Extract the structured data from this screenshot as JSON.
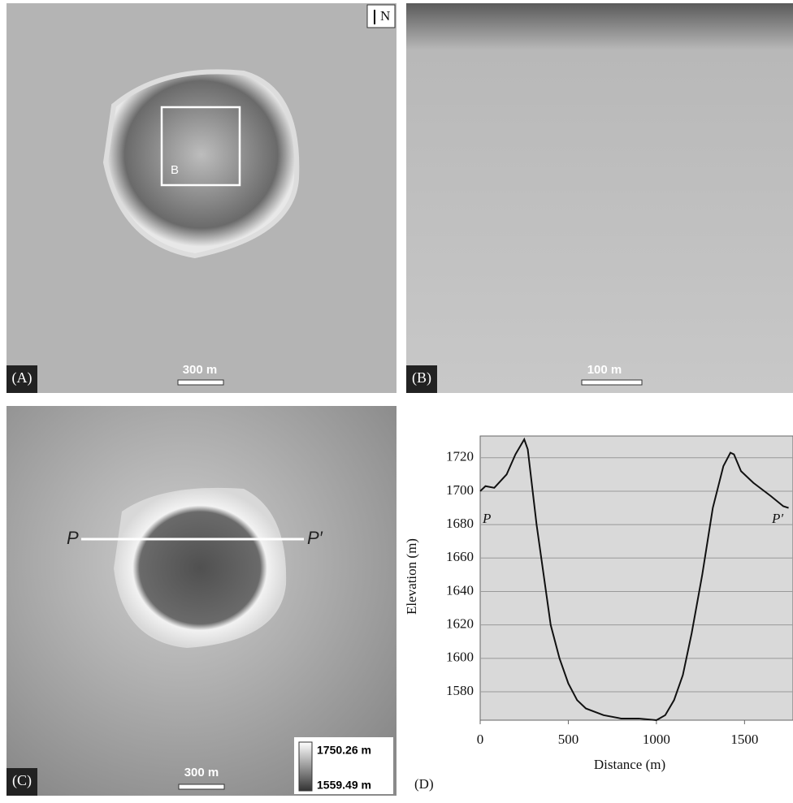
{
  "panels": {
    "a": {
      "label": "(A)",
      "scale": "300 m",
      "north": "N",
      "inset": "B"
    },
    "b": {
      "label": "(B)",
      "scale": "100 m"
    },
    "c": {
      "label": "(C)",
      "scale": "300 m",
      "profile_start": "P",
      "profile_end": "P′",
      "legend_high": "1750.26 m",
      "legend_low": "1559.49 m"
    },
    "d": {
      "label": "(D)"
    }
  },
  "chart_data": {
    "type": "line",
    "xlabel": "Distance (m)",
    "ylabel": "Elevation (m)",
    "x": [
      0,
      30,
      80,
      150,
      200,
      250,
      270,
      320,
      400,
      450,
      500,
      550,
      600,
      700,
      800,
      900,
      1000,
      1050,
      1100,
      1150,
      1200,
      1260,
      1320,
      1380,
      1420,
      1440,
      1480,
      1550,
      1650,
      1720,
      1750
    ],
    "values": [
      1700,
      1703,
      1702,
      1710,
      1722,
      1731,
      1725,
      1680,
      1620,
      1600,
      1585,
      1575,
      1570,
      1566,
      1564,
      1564,
      1563,
      1566,
      1575,
      1590,
      1615,
      1650,
      1690,
      1715,
      1723,
      1722,
      1712,
      1705,
      1697,
      1691,
      1690
    ],
    "color": "#111111",
    "xlim": [
      0,
      1775
    ],
    "ylim": [
      1563,
      1733
    ],
    "xticks": [
      0,
      500,
      1000,
      1500
    ],
    "yticks": [
      1580,
      1600,
      1620,
      1640,
      1660,
      1680,
      1700,
      1720
    ],
    "grid": true,
    "annotations": [
      "P",
      "P′"
    ]
  }
}
